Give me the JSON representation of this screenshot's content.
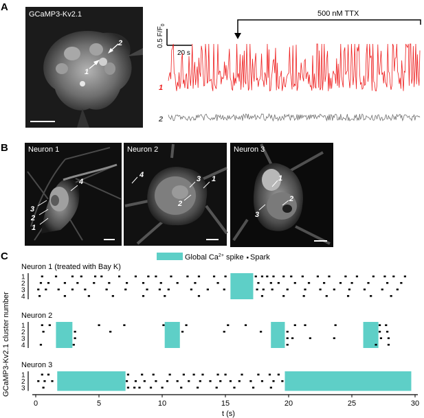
{
  "panels": {
    "a": {
      "letter": "A",
      "image_label": "GCaMP3-Kv2.1",
      "arrow_labels": [
        "1",
        "2"
      ],
      "scale_y_label": "0.5 F/F",
      "scale_y_sub": "0",
      "scale_x_label": "20 s",
      "drug_label": "500 nM TTX",
      "trace_labels": [
        "1",
        "2"
      ],
      "colors": {
        "trace1": "#ee1c1c",
        "trace2": "#707070"
      }
    },
    "b": {
      "letter": "B",
      "neurons": [
        {
          "title": "Neuron 1",
          "labels": [
            "4",
            "3",
            "2",
            "1"
          ]
        },
        {
          "title": "Neuron 2",
          "labels": [
            "4",
            "3",
            "1",
            "2"
          ]
        },
        {
          "title": "Neuron 3",
          "labels": [
            "1",
            "2",
            "3"
          ]
        }
      ]
    },
    "c": {
      "letter": "C",
      "legend_spike": "Global Ca",
      "legend_spike_sup": "2+",
      "legend_spike_tail": " spike",
      "legend_spark": "Spark",
      "ylabel": "GCaMP3-Kv2.1 cluster number",
      "xlabel": "t (s)",
      "xticks": [
        "0",
        "5",
        "10",
        "15",
        "20",
        "25",
        "30"
      ],
      "spike_color": "#5ecfc7"
    }
  },
  "chart_data": {
    "type": "raster",
    "xlabel": "t (s)",
    "ylabel": "GCaMP3-Kv2.1 cluster number",
    "xlim": [
      0,
      30
    ],
    "rows": [
      {
        "name": "Neuron 1 (treated with Bay K)",
        "clusters": [
          "1",
          "2",
          "3",
          "4"
        ],
        "global_spikes": [
          [
            15.4,
            17.2
          ]
        ],
        "sparks": [
          [
            0.5,
            1.6,
            2.9,
            3.6,
            4.7,
            5.2,
            6.6,
            7.9,
            8.9,
            9.5,
            10.7,
            12.0,
            12.9,
            14.1,
            15.0,
            17.4,
            17.9,
            18.3,
            18.8,
            19.6,
            20.2,
            21.1,
            22.3,
            23.2,
            24.5,
            25.4,
            26.7,
            27.6,
            28.3,
            29.2
          ],
          [
            0.4,
            1.0,
            2.3,
            3.3,
            4.6,
            5.8,
            7.2,
            8.5,
            9.9,
            11.2,
            12.6,
            14.4,
            17.6,
            18.6,
            19.2,
            20.5,
            21.6,
            22.8,
            24.1,
            25.0,
            26.3,
            27.8,
            28.9
          ],
          [
            0.2,
            0.8,
            1.8,
            2.9,
            3.9,
            5.6,
            7.1,
            8.8,
            9.8,
            10.5,
            12.3,
            13.6,
            14.9,
            17.5,
            18.0,
            18.7,
            19.9,
            21.3,
            22.5,
            23.6,
            24.8,
            26.0,
            27.4,
            28.6
          ],
          [
            0.3,
            2.3,
            4.2,
            6.1,
            8.5,
            10.2,
            12.9,
            17.9,
            19.6,
            21.2,
            23.0,
            24.7,
            26.5,
            28.1
          ]
        ]
      },
      {
        "name": "Neuron 2",
        "clusters": [
          "1",
          "2",
          "3",
          "4"
        ],
        "global_spikes": [
          [
            1.6,
            2.9
          ],
          [
            10.2,
            11.4
          ],
          [
            18.6,
            19.7
          ],
          [
            25.9,
            27.1
          ]
        ],
        "sparks": [
          [
            0.5,
            1.1,
            5.0,
            7.0,
            10.1,
            11.9,
            15.2,
            16.6,
            20.5,
            21.3,
            23.7,
            27.2,
            27.7
          ],
          [
            0.6,
            3.1,
            5.9,
            11.6,
            14.9,
            17.8,
            19.9,
            27.2,
            27.8
          ],
          [
            3.1,
            19.9,
            20.3,
            21.7,
            23.6,
            27.3,
            27.9
          ],
          [
            0.4,
            3.0,
            19.9,
            26.9,
            27.9
          ]
        ]
      },
      {
        "name": "Neuron 3",
        "clusters": [
          "1",
          "2",
          "3"
        ],
        "global_spikes": [
          [
            1.7,
            7.1
          ],
          [
            19.7,
            29.7
          ]
        ],
        "sparks": [
          [
            0.5,
            1.0,
            7.3,
            8.4,
            9.3,
            10.6,
            11.7,
            12.5,
            13.2,
            14.4,
            15.0,
            16.3,
            17.6,
            18.5,
            19.2
          ],
          [
            0.2,
            0.7,
            1.3,
            7.2,
            7.9,
            8.6,
            9.5,
            10.4,
            11.2,
            12.1,
            13.0,
            13.8,
            14.6,
            15.4,
            16.1,
            17.0,
            17.9,
            18.8,
            19.5
          ],
          [
            0.6,
            7.3,
            7.8,
            8.2,
            9.1,
            10.0,
            11.5,
            12.8,
            14.3,
            15.7,
            17.2,
            18.6
          ]
        ]
      }
    ]
  }
}
